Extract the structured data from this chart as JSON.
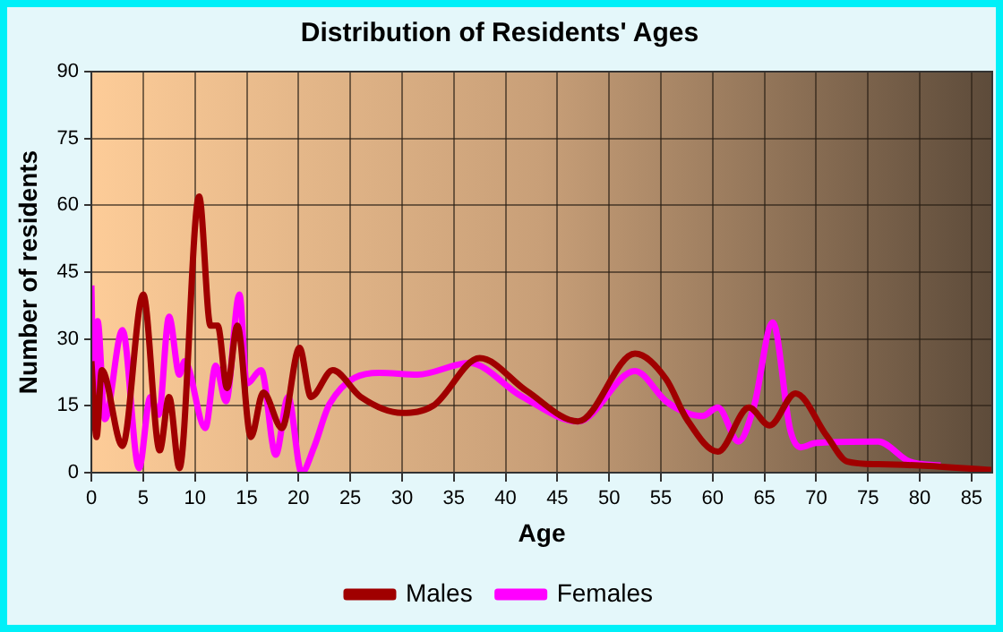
{
  "chart_data": {
    "type": "line",
    "title": "Distribution of Residents' Ages",
    "xlabel": "Age",
    "ylabel": "Number of residents",
    "xlim": [
      0,
      87
    ],
    "xticks": [
      0,
      5,
      10,
      15,
      20,
      25,
      30,
      35,
      40,
      45,
      50,
      55,
      60,
      65,
      70,
      75,
      80,
      85
    ],
    "ylim": [
      0,
      90
    ],
    "yticks": [
      0,
      15,
      30,
      45,
      60,
      75,
      90
    ],
    "grid": true,
    "legend": "bottom",
    "marker": "none",
    "line_style": "solid",
    "series": [
      {
        "name": "Males",
        "color": "#a00000",
        "x": [
          0,
          0.5,
          1,
          3,
          5,
          6.6,
          7.5,
          8.5,
          10.4,
          11.5,
          12.2,
          13.1,
          14.1,
          15.4,
          16.6,
          18.4,
          20.1,
          21.2,
          23.3,
          26,
          30,
          33,
          37.5,
          42,
          47,
          52.5,
          55.5,
          57.5,
          60.5,
          63.5,
          65.5,
          68,
          71,
          73,
          76,
          80,
          86.9
        ],
        "values": [
          25,
          8,
          23,
          6,
          40,
          5,
          17,
          1,
          62,
          33,
          33,
          19,
          33,
          8,
          18,
          10,
          28,
          17,
          23,
          17,
          13.4,
          15,
          25.7,
          18.4,
          11.5,
          26.7,
          21,
          12,
          4.7,
          14.6,
          10.6,
          17.8,
          8.3,
          2.5,
          1.9,
          1.6,
          0.6
        ]
      },
      {
        "name": "Females",
        "color": "#ff00ff",
        "x": [
          0,
          0.3,
          0.6,
          1.3,
          3,
          4.6,
          5.7,
          6.5,
          7.5,
          8.5,
          9,
          11,
          12,
          13,
          14.3,
          15,
          16.4,
          17.8,
          19,
          20.3,
          21.5,
          23,
          27.8,
          31.5,
          36.5,
          41.5,
          47,
          52.5,
          55.5,
          57.5,
          59,
          60.5,
          62.5,
          64,
          65.8,
          67.5,
          68.5,
          70,
          76,
          79,
          82
        ],
        "values": [
          42,
          10,
          34,
          12,
          32,
          1,
          17,
          13,
          35,
          22,
          25,
          10,
          24,
          16,
          40,
          20,
          23,
          4,
          17,
          0,
          5.7,
          15.4,
          22.4,
          22,
          24.6,
          17.2,
          11.5,
          22.8,
          16,
          13.4,
          12.7,
          14.6,
          7,
          15,
          33.7,
          9.5,
          5.7,
          6.7,
          7,
          2.5,
          1.6
        ]
      }
    ]
  }
}
